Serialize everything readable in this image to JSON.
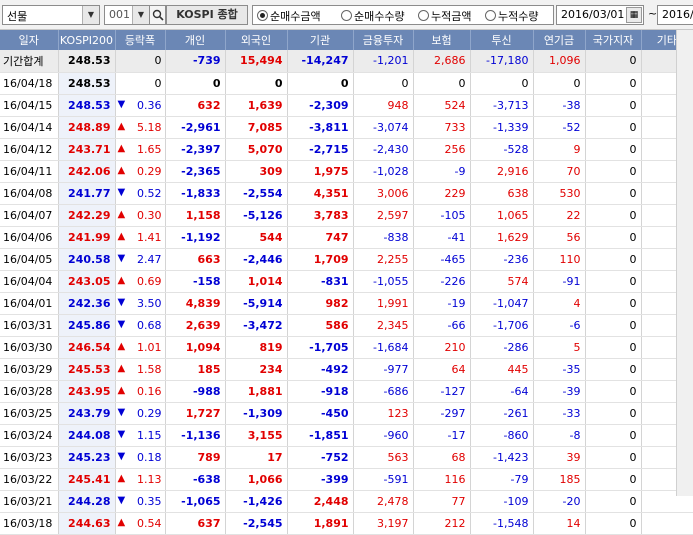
{
  "toolbar": {
    "market_select": "선물",
    "code_value": "001",
    "index_name": "KOSPI 종합",
    "radio_options": [
      {
        "label": "순매수금액",
        "selected": true
      },
      {
        "label": "순매수수량",
        "selected": false
      },
      {
        "label": "누적금액",
        "selected": false
      },
      {
        "label": "누적수량",
        "selected": false
      }
    ],
    "start_date": "2016/03/01",
    "date_separator": "~",
    "end_date": "2016/"
  },
  "colors": {
    "up": "#e10000",
    "down": "#0000d4",
    "header_bg": "#6b87b5"
  },
  "table": {
    "columns": [
      "일자",
      "KOSPI200",
      "등락폭",
      "개인",
      "외국인",
      "기관",
      "금융투자",
      "보험",
      "투신",
      "연기금",
      "국가지자",
      "기타법인"
    ],
    "rows": [
      {
        "date": "기간합계",
        "kospi": "248.53",
        "dir": "",
        "chg": "0",
        "indiv": "-739",
        "foreign": "15,494",
        "inst": "-14,247",
        "fin": "-1,201",
        "ins": "2,686",
        "trust": "-17,180",
        "pension": "1,096",
        "gov": "0",
        "etc": "-507",
        "total": true
      },
      {
        "date": "16/04/18",
        "kospi": "248.53",
        "dir": "",
        "chg": "0",
        "indiv": "0",
        "foreign": "0",
        "inst": "0",
        "fin": "0",
        "ins": "0",
        "trust": "0",
        "pension": "0",
        "gov": "0",
        "etc": "0"
      },
      {
        "date": "16/04/15",
        "kospi": "248.53",
        "dir": "down",
        "chg": "0.36",
        "indiv": "632",
        "foreign": "1,639",
        "inst": "-2,309",
        "fin": "948",
        "ins": "524",
        "trust": "-3,713",
        "pension": "-38",
        "gov": "0",
        "etc": "37"
      },
      {
        "date": "16/04/14",
        "kospi": "248.89",
        "dir": "up",
        "chg": "5.18",
        "indiv": "-2,961",
        "foreign": "7,085",
        "inst": "-3,811",
        "fin": "-3,074",
        "ins": "733",
        "trust": "-1,339",
        "pension": "-52",
        "gov": "0",
        "etc": "-312"
      },
      {
        "date": "16/04/12",
        "kospi": "243.71",
        "dir": "up",
        "chg": "1.65",
        "indiv": "-2,397",
        "foreign": "5,070",
        "inst": "-2,715",
        "fin": "-2,430",
        "ins": "256",
        "trust": "-528",
        "pension": "9",
        "gov": "0",
        "etc": "42"
      },
      {
        "date": "16/04/11",
        "kospi": "242.06",
        "dir": "up",
        "chg": "0.29",
        "indiv": "-2,365",
        "foreign": "309",
        "inst": "1,975",
        "fin": "-1,028",
        "ins": "-9",
        "trust": "2,916",
        "pension": "70",
        "gov": "0",
        "etc": "81"
      },
      {
        "date": "16/04/08",
        "kospi": "241.77",
        "dir": "down",
        "chg": "0.52",
        "indiv": "-1,833",
        "foreign": "-2,554",
        "inst": "4,351",
        "fin": "3,006",
        "ins": "229",
        "trust": "638",
        "pension": "530",
        "gov": "0",
        "etc": "37"
      },
      {
        "date": "16/04/07",
        "kospi": "242.29",
        "dir": "up",
        "chg": "0.30",
        "indiv": "1,158",
        "foreign": "-5,126",
        "inst": "3,783",
        "fin": "2,597",
        "ins": "-105",
        "trust": "1,065",
        "pension": "22",
        "gov": "0",
        "etc": "184"
      },
      {
        "date": "16/04/06",
        "kospi": "241.99",
        "dir": "up",
        "chg": "1.41",
        "indiv": "-1,192",
        "foreign": "544",
        "inst": "747",
        "fin": "-838",
        "ins": "-41",
        "trust": "1,629",
        "pension": "56",
        "gov": "0",
        "etc": "-99"
      },
      {
        "date": "16/04/05",
        "kospi": "240.58",
        "dir": "down",
        "chg": "2.47",
        "indiv": "663",
        "foreign": "-2,446",
        "inst": "1,709",
        "fin": "2,255",
        "ins": "-465",
        "trust": "-236",
        "pension": "110",
        "gov": "0",
        "etc": "73"
      },
      {
        "date": "16/04/04",
        "kospi": "243.05",
        "dir": "up",
        "chg": "0.69",
        "indiv": "-158",
        "foreign": "1,014",
        "inst": "-831",
        "fin": "-1,055",
        "ins": "-226",
        "trust": "574",
        "pension": "-91",
        "gov": "0",
        "etc": "-25"
      },
      {
        "date": "16/04/01",
        "kospi": "242.36",
        "dir": "down",
        "chg": "3.50",
        "indiv": "4,839",
        "foreign": "-5,914",
        "inst": "982",
        "fin": "1,991",
        "ins": "-19",
        "trust": "-1,047",
        "pension": "4",
        "gov": "0",
        "etc": "93"
      },
      {
        "date": "16/03/31",
        "kospi": "245.86",
        "dir": "down",
        "chg": "0.68",
        "indiv": "2,639",
        "foreign": "-3,472",
        "inst": "586",
        "fin": "2,345",
        "ins": "-66",
        "trust": "-1,706",
        "pension": "-6",
        "gov": "0",
        "etc": "246"
      },
      {
        "date": "16/03/30",
        "kospi": "246.54",
        "dir": "up",
        "chg": "1.01",
        "indiv": "1,094",
        "foreign": "819",
        "inst": "-1,705",
        "fin": "-1,684",
        "ins": "210",
        "trust": "-286",
        "pension": "5",
        "gov": "0",
        "etc": "-207"
      },
      {
        "date": "16/03/29",
        "kospi": "245.53",
        "dir": "up",
        "chg": "1.58",
        "indiv": "185",
        "foreign": "234",
        "inst": "-492",
        "fin": "-977",
        "ins": "64",
        "trust": "445",
        "pension": "-35",
        "gov": "0",
        "etc": "72"
      },
      {
        "date": "16/03/28",
        "kospi": "243.95",
        "dir": "up",
        "chg": "0.16",
        "indiv": "-988",
        "foreign": "1,881",
        "inst": "-918",
        "fin": "-686",
        "ins": "-127",
        "trust": "-64",
        "pension": "-39",
        "gov": "0",
        "etc": "24"
      },
      {
        "date": "16/03/25",
        "kospi": "243.79",
        "dir": "down",
        "chg": "0.29",
        "indiv": "1,727",
        "foreign": "-1,309",
        "inst": "-450",
        "fin": "123",
        "ins": "-297",
        "trust": "-261",
        "pension": "-33",
        "gov": "0",
        "etc": "32"
      },
      {
        "date": "16/03/24",
        "kospi": "244.08",
        "dir": "down",
        "chg": "1.15",
        "indiv": "-1,136",
        "foreign": "3,155",
        "inst": "-1,851",
        "fin": "-960",
        "ins": "-17",
        "trust": "-860",
        "pension": "-8",
        "gov": "0",
        "etc": "-167"
      },
      {
        "date": "16/03/23",
        "kospi": "245.23",
        "dir": "down",
        "chg": "0.18",
        "indiv": "789",
        "foreign": "17",
        "inst": "-752",
        "fin": "563",
        "ins": "68",
        "trust": "-1,423",
        "pension": "39",
        "gov": "0",
        "etc": "-53"
      },
      {
        "date": "16/03/22",
        "kospi": "245.41",
        "dir": "up",
        "chg": "1.13",
        "indiv": "-638",
        "foreign": "1,066",
        "inst": "-399",
        "fin": "-591",
        "ins": "116",
        "trust": "-79",
        "pension": "185",
        "gov": "0",
        "etc": "-28"
      },
      {
        "date": "16/03/21",
        "kospi": "244.28",
        "dir": "down",
        "chg": "0.35",
        "indiv": "-1,065",
        "foreign": "-1,426",
        "inst": "2,448",
        "fin": "2,478",
        "ins": "77",
        "trust": "-109",
        "pension": "-20",
        "gov": "0",
        "etc": "43"
      },
      {
        "date": "16/03/18",
        "kospi": "244.63",
        "dir": "up",
        "chg": "0.54",
        "indiv": "637",
        "foreign": "-2,545",
        "inst": "1,891",
        "fin": "3,197",
        "ins": "212",
        "trust": "-1,548",
        "pension": "14",
        "gov": "0",
        "etc": "17"
      }
    ]
  }
}
